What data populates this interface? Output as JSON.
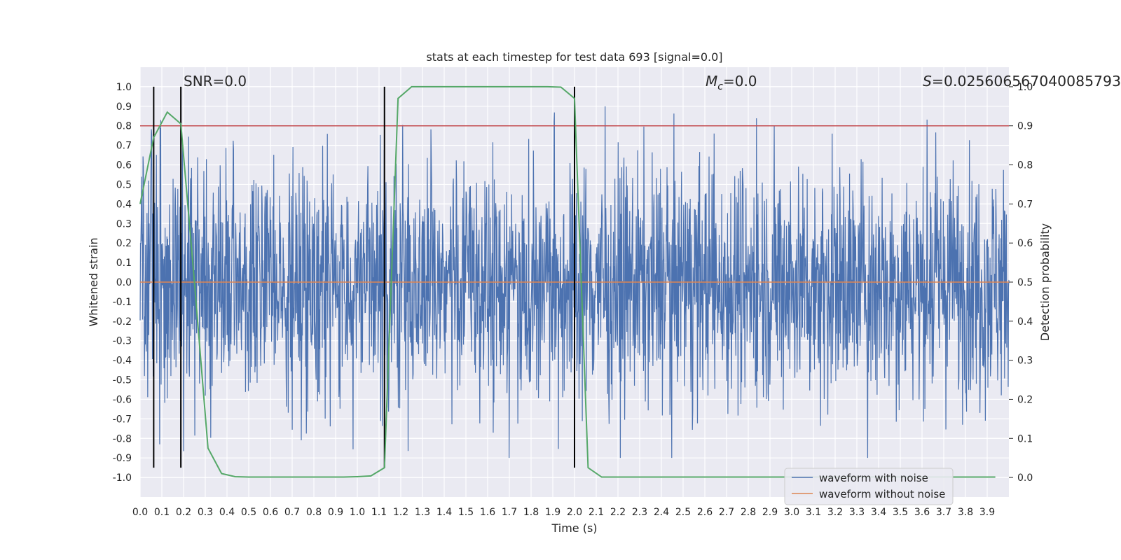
{
  "chart_data": {
    "type": "line",
    "title": "stats at each timestep for test data 693 [signal=0.0]",
    "xlabel": "Time (s)",
    "ylabel": "Whitened strain",
    "ylabel_right": "Detection probability",
    "xlim": [
      0.0,
      4.0
    ],
    "ylim": [
      -1.1,
      1.1
    ],
    "ylim_right": [
      -0.05,
      1.05
    ],
    "xticks": [
      "0.0",
      "0.1",
      "0.2",
      "0.3",
      "0.4",
      "0.5",
      "0.6",
      "0.7",
      "0.8",
      "0.9",
      "1.0",
      "1.1",
      "1.2",
      "1.3",
      "1.4",
      "1.5",
      "1.6",
      "1.7",
      "1.8",
      "1.9",
      "2.0",
      "2.1",
      "2.2",
      "2.3",
      "2.4",
      "2.5",
      "2.6",
      "2.7",
      "2.8",
      "2.9",
      "3.0",
      "3.1",
      "3.2",
      "3.3",
      "3.4",
      "3.5",
      "3.6",
      "3.7",
      "3.8",
      "3.9"
    ],
    "yticks": [
      "1.0",
      "0.9",
      "0.8",
      "0.7",
      "0.6",
      "0.5",
      "0.4",
      "0.3",
      "0.2",
      "0.1",
      "0.0",
      "-0.1",
      "-0.2",
      "-0.3",
      "-0.4",
      "-0.5",
      "-0.6",
      "-0.7",
      "-0.8",
      "-0.9",
      "-1.0"
    ],
    "yticks_right": [
      "1.0",
      "0.9",
      "0.8",
      "0.7",
      "0.6",
      "0.5",
      "0.4",
      "0.3",
      "0.2",
      "0.1",
      "0.0"
    ],
    "grid": true,
    "legend_position": "lower-right",
    "annotations": {
      "snr": "SNR=0.0",
      "mc_symbol": "M",
      "mc_sub": "c",
      "mc_value": "=0.0",
      "s_symbol": "S",
      "s_value": "=0.025606567040085793"
    },
    "series": [
      {
        "name": "waveform with noise",
        "color": "#4c72b0",
        "amplitude": 0.9,
        "axis": "left"
      },
      {
        "name": "waveform without noise",
        "color": "#dd8452",
        "value": 0.0,
        "axis": "left"
      }
    ],
    "threshold": {
      "value": 0.9,
      "color": "#c44e52",
      "axis": "right"
    },
    "detection_probability": {
      "color": "#55a868",
      "axis": "right",
      "x": [
        0.0,
        0.0625,
        0.125,
        0.1875,
        0.25,
        0.3125,
        0.375,
        0.4375,
        0.5,
        0.5625,
        0.625,
        0.6875,
        0.75,
        0.8125,
        0.875,
        0.9375,
        1.0,
        1.0625,
        1.125,
        1.1875,
        1.25,
        1.3125,
        1.375,
        1.4375,
        1.5,
        1.5625,
        1.625,
        1.6875,
        1.75,
        1.8125,
        1.875,
        1.9375,
        2.0,
        2.0625,
        2.125,
        2.1875,
        2.25,
        2.3125,
        2.375,
        2.4375,
        2.5,
        2.5625,
        2.625,
        2.6875,
        2.75,
        2.8125,
        2.875,
        2.9375,
        3.0,
        3.0625,
        3.125,
        3.1875,
        3.25,
        3.3125,
        3.375,
        3.4375,
        3.5,
        3.5625,
        3.625,
        3.6875,
        3.75,
        3.8125,
        3.875,
        3.9375
      ],
      "y": [
        0.7,
        0.87,
        0.935,
        0.905,
        0.5,
        0.075,
        0.01,
        0.002,
        0.001,
        0.001,
        0.001,
        0.001,
        0.001,
        0.001,
        0.001,
        0.001,
        0.002,
        0.004,
        0.025,
        0.97,
        1.0,
        1.0,
        1.0,
        1.0,
        1.0,
        1.0,
        1.0,
        1.0,
        1.0,
        1.0,
        1.0,
        0.999,
        0.97,
        0.025,
        0.001,
        0.001,
        0.001,
        0.001,
        0.001,
        0.001,
        0.001,
        0.001,
        0.001,
        0.001,
        0.001,
        0.001,
        0.001,
        0.001,
        0.001,
        0.001,
        0.001,
        0.001,
        0.001,
        0.001,
        0.001,
        0.001,
        0.001,
        0.001,
        0.001,
        0.001,
        0.001,
        0.001,
        0.001,
        0.001
      ]
    },
    "vertical_markers": [
      0.0625,
      0.1875,
      1.125,
      2.0
    ],
    "vertical_marker_range": [
      -0.95,
      1.0
    ]
  }
}
